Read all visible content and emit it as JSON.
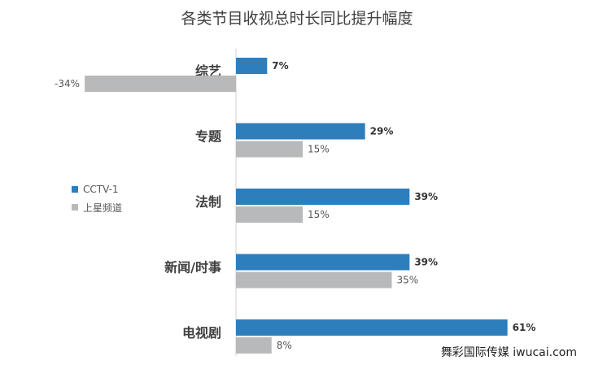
{
  "chart_data": {
    "type": "bar",
    "orientation": "horizontal",
    "title": "各类节目收视总时长同比提升幅度",
    "categories": [
      "综艺",
      "专题",
      "法制",
      "新闻/时事",
      "电视剧"
    ],
    "series": [
      {
        "name": "CCTV-1",
        "color": "#2e7ebc",
        "values": [
          7,
          29,
          39,
          39,
          61
        ],
        "labels": [
          "7%",
          "29%",
          "39%",
          "39%",
          "61%"
        ]
      },
      {
        "name": "上星频道",
        "color": "#b8b9bb",
        "values": [
          -34,
          15,
          15,
          35,
          8
        ],
        "labels": [
          "-34%",
          "15%",
          "15%",
          "35%",
          "8%"
        ]
      }
    ],
    "xlim": [
      -34,
      61
    ],
    "grid": false,
    "legend_position": "left"
  },
  "watermark": "舞彩国际传媒 iwucai.com"
}
